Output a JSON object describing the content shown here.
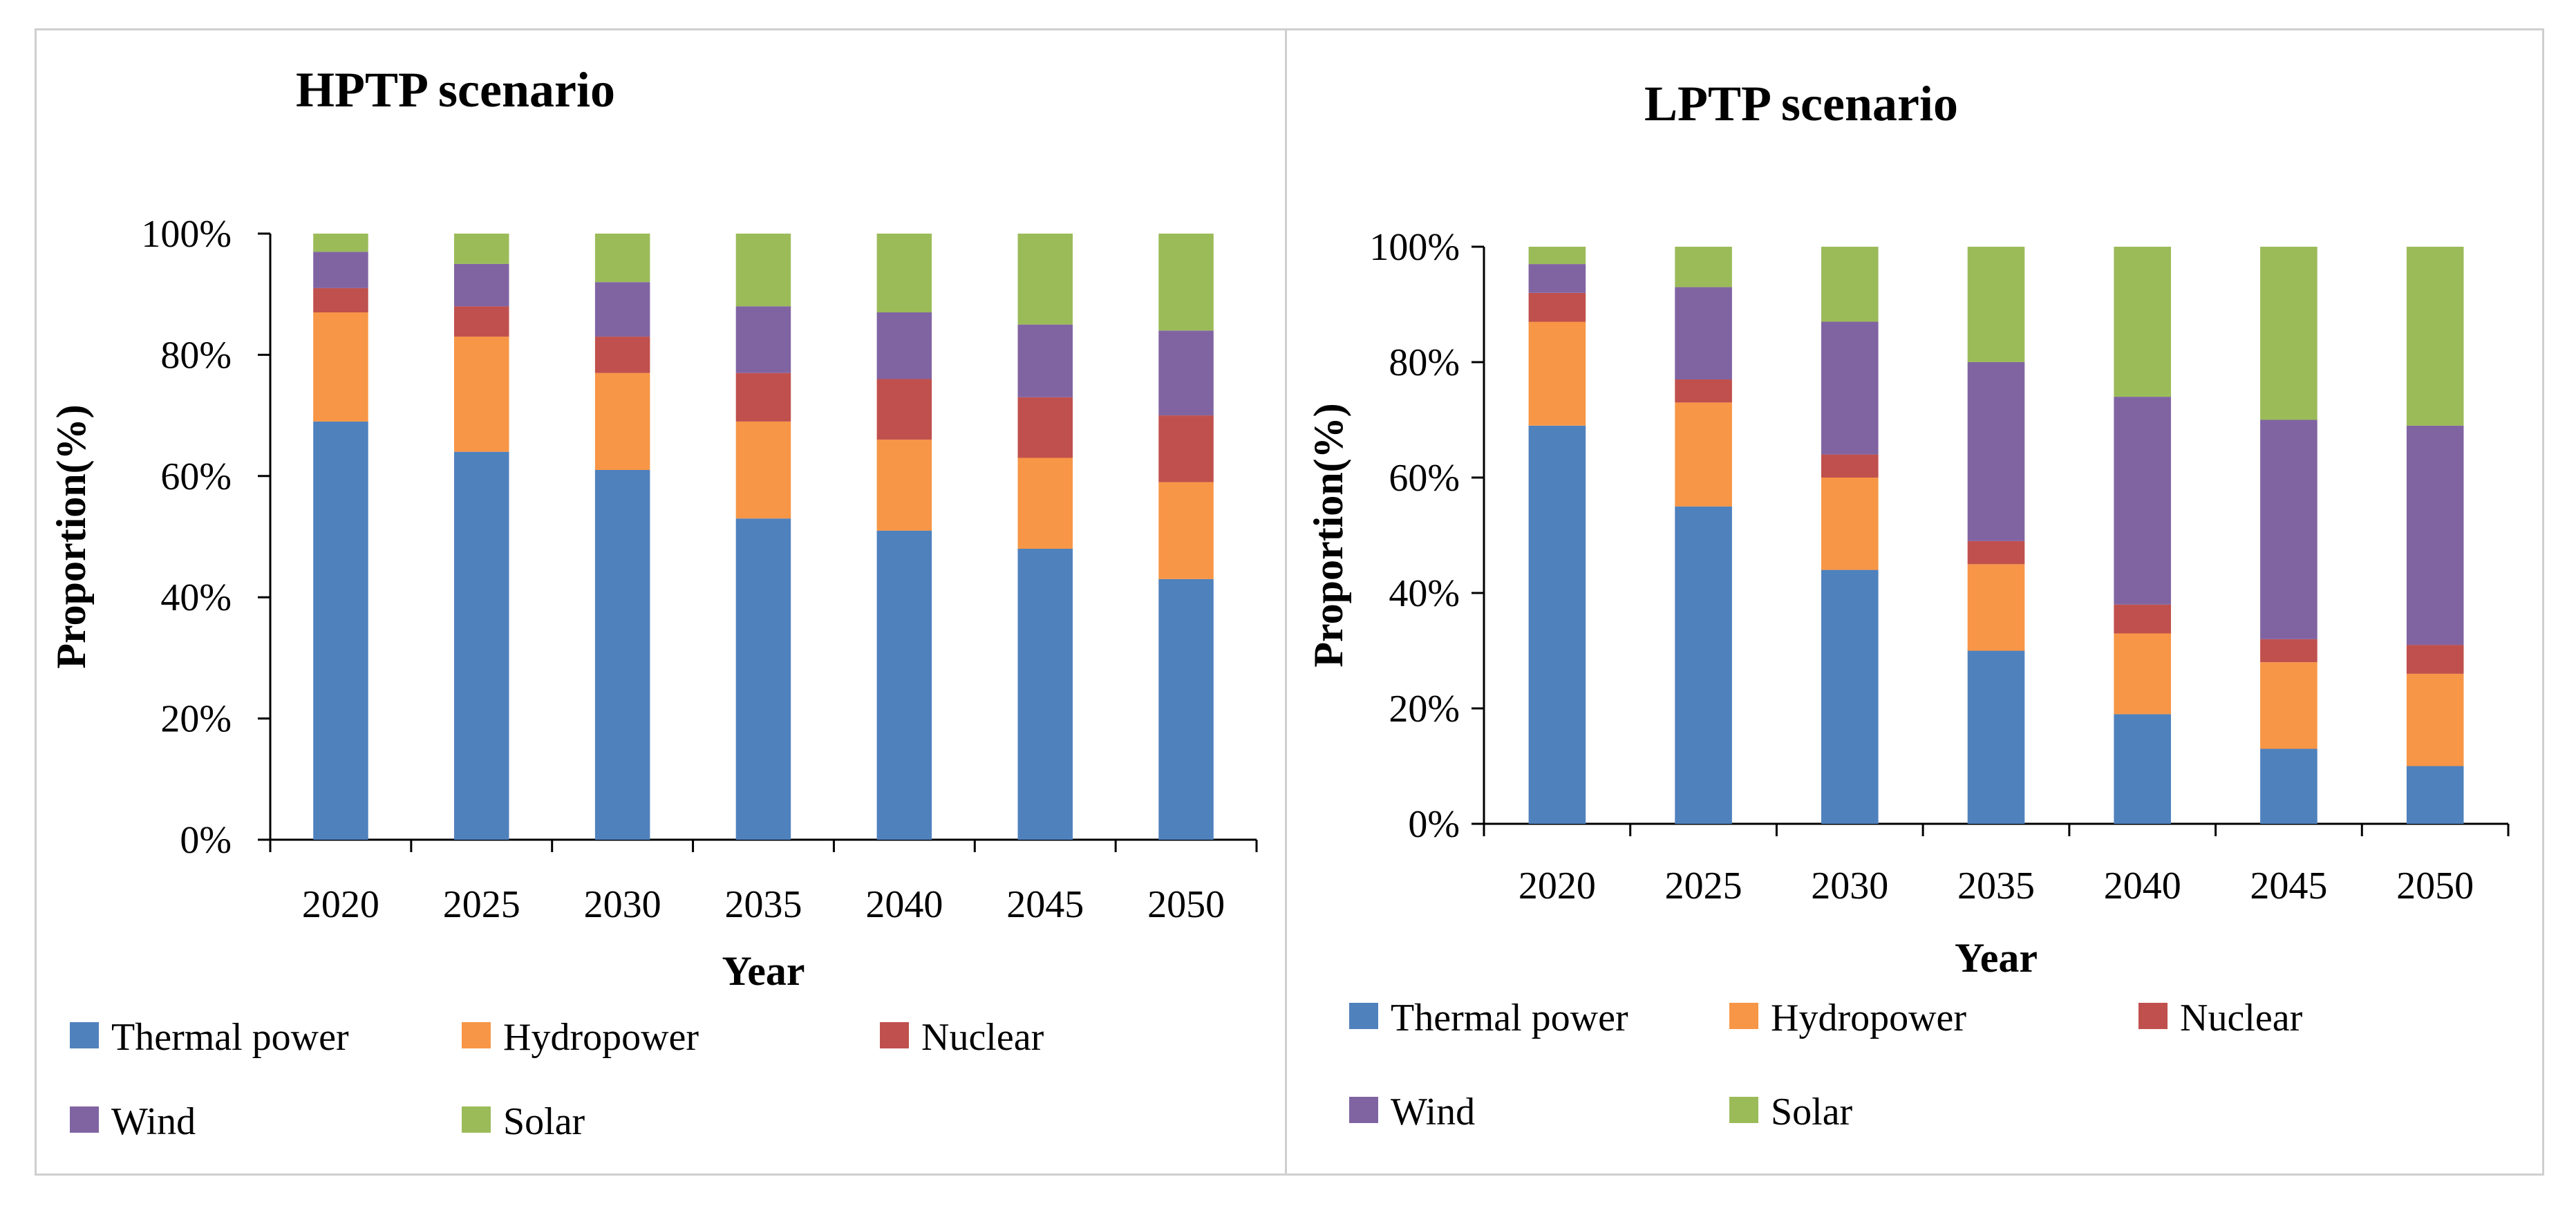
{
  "colors": {
    "Thermal power": "#4F81BD",
    "Hydropower": "#F79646",
    "Nuclear": "#C0504D",
    "Wind": "#8064A2",
    "Solar": "#9BBB59"
  },
  "chart_data": [
    {
      "type": "bar",
      "stacked": true,
      "title": "HPTP scenario",
      "xlabel": "Year",
      "ylabel": "Proportion(%)",
      "ylim": [
        0,
        100
      ],
      "yticks": [
        "0%",
        "20%",
        "40%",
        "60%",
        "80%",
        "100%"
      ],
      "categories": [
        "2020",
        "2025",
        "2030",
        "2035",
        "2040",
        "2045",
        "2050"
      ],
      "series": [
        {
          "name": "Thermal power",
          "values": [
            69,
            64,
            61,
            53,
            51,
            48,
            43
          ]
        },
        {
          "name": "Hydropower",
          "values": [
            18,
            19,
            16,
            16,
            15,
            15,
            16
          ]
        },
        {
          "name": "Nuclear",
          "values": [
            4,
            5,
            6,
            8,
            10,
            10,
            11
          ]
        },
        {
          "name": "Wind",
          "values": [
            6,
            7,
            9,
            11,
            11,
            12,
            14
          ]
        },
        {
          "name": "Solar",
          "values": [
            3,
            5,
            8,
            12,
            13,
            15,
            16
          ]
        }
      ],
      "legend": {
        "rows": [
          [
            "Thermal power",
            "Hydropower",
            "Nuclear"
          ],
          [
            "Wind",
            "Solar"
          ]
        ],
        "placement": "bottom"
      }
    },
    {
      "type": "bar",
      "stacked": true,
      "title": "LPTP scenario",
      "xlabel": "Year",
      "ylabel": "Proportion(%)",
      "ylim": [
        0,
        100
      ],
      "yticks": [
        "0%",
        "20%",
        "40%",
        "60%",
        "80%",
        "100%"
      ],
      "categories": [
        "2020",
        "2025",
        "2030",
        "2035",
        "2040",
        "2045",
        "2050"
      ],
      "series": [
        {
          "name": "Thermal power",
          "values": [
            69,
            55,
            44,
            30,
            19,
            13,
            10
          ]
        },
        {
          "name": "Hydropower",
          "values": [
            18,
            18,
            16,
            15,
            14,
            15,
            16
          ]
        },
        {
          "name": "Nuclear",
          "values": [
            5,
            4,
            4,
            4,
            5,
            4,
            5
          ]
        },
        {
          "name": "Wind",
          "values": [
            5,
            16,
            23,
            31,
            36,
            38,
            38
          ]
        },
        {
          "name": "Solar",
          "values": [
            3,
            7,
            13,
            20,
            26,
            30,
            31
          ]
        }
      ],
      "legend": {
        "rows": [
          [
            "Thermal power",
            "Hydropower",
            "Nuclear"
          ],
          [
            "Wind",
            "Solar"
          ]
        ],
        "placement": "bottom"
      }
    }
  ]
}
